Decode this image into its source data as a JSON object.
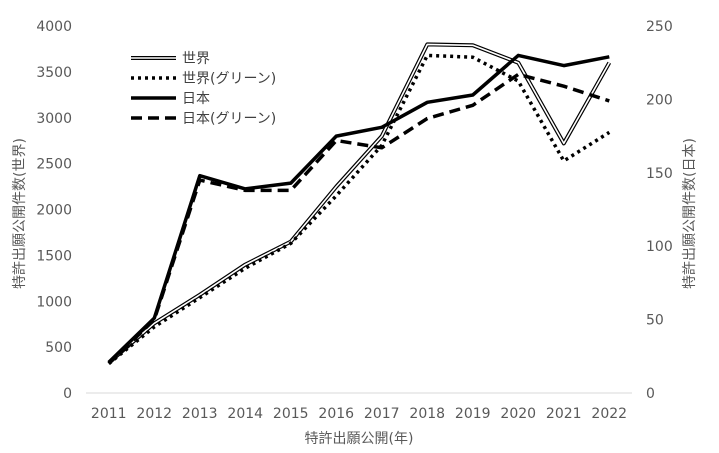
{
  "chart_data": {
    "type": "line",
    "xlabel": "特許出願公開(年)",
    "ylabel_left": "特許出願公開件数(世界)",
    "ylabel_right": "特許出願公開件数(日本)",
    "x": [
      "2011",
      "2012",
      "2013",
      "2014",
      "2015",
      "2016",
      "2017",
      "2018",
      "2019",
      "2020",
      "2021",
      "2022"
    ],
    "y_left": {
      "min": 0,
      "max": 4000,
      "step": 500
    },
    "y_right": {
      "min": 0,
      "max": 250,
      "step": 50
    },
    "grid": false,
    "legend_position": "top-left",
    "series": [
      {
        "name": "世界",
        "axis": "left",
        "style": "double",
        "color": "#000000",
        "values": [
          330,
          760,
          1070,
          1400,
          1650,
          2250,
          2800,
          3800,
          3790,
          3600,
          2720,
          3600
        ]
      },
      {
        "name": "世界(グリーン)",
        "axis": "left",
        "style": "dotted",
        "color": "#000000",
        "values": [
          320,
          720,
          1040,
          1360,
          1630,
          2150,
          2700,
          3680,
          3660,
          3400,
          2530,
          2840
        ]
      },
      {
        "name": "日本",
        "axis": "right",
        "style": "solid",
        "color": "#000000",
        "values": [
          21,
          51,
          148,
          139,
          143,
          175,
          181,
          198,
          203,
          230,
          223,
          229
        ]
      },
      {
        "name": "日本(グリーン)",
        "axis": "right",
        "style": "dashed",
        "color": "#000000",
        "values": [
          20,
          50,
          145,
          138,
          138,
          172,
          167,
          187,
          196,
          217,
          209,
          199
        ]
      }
    ]
  }
}
